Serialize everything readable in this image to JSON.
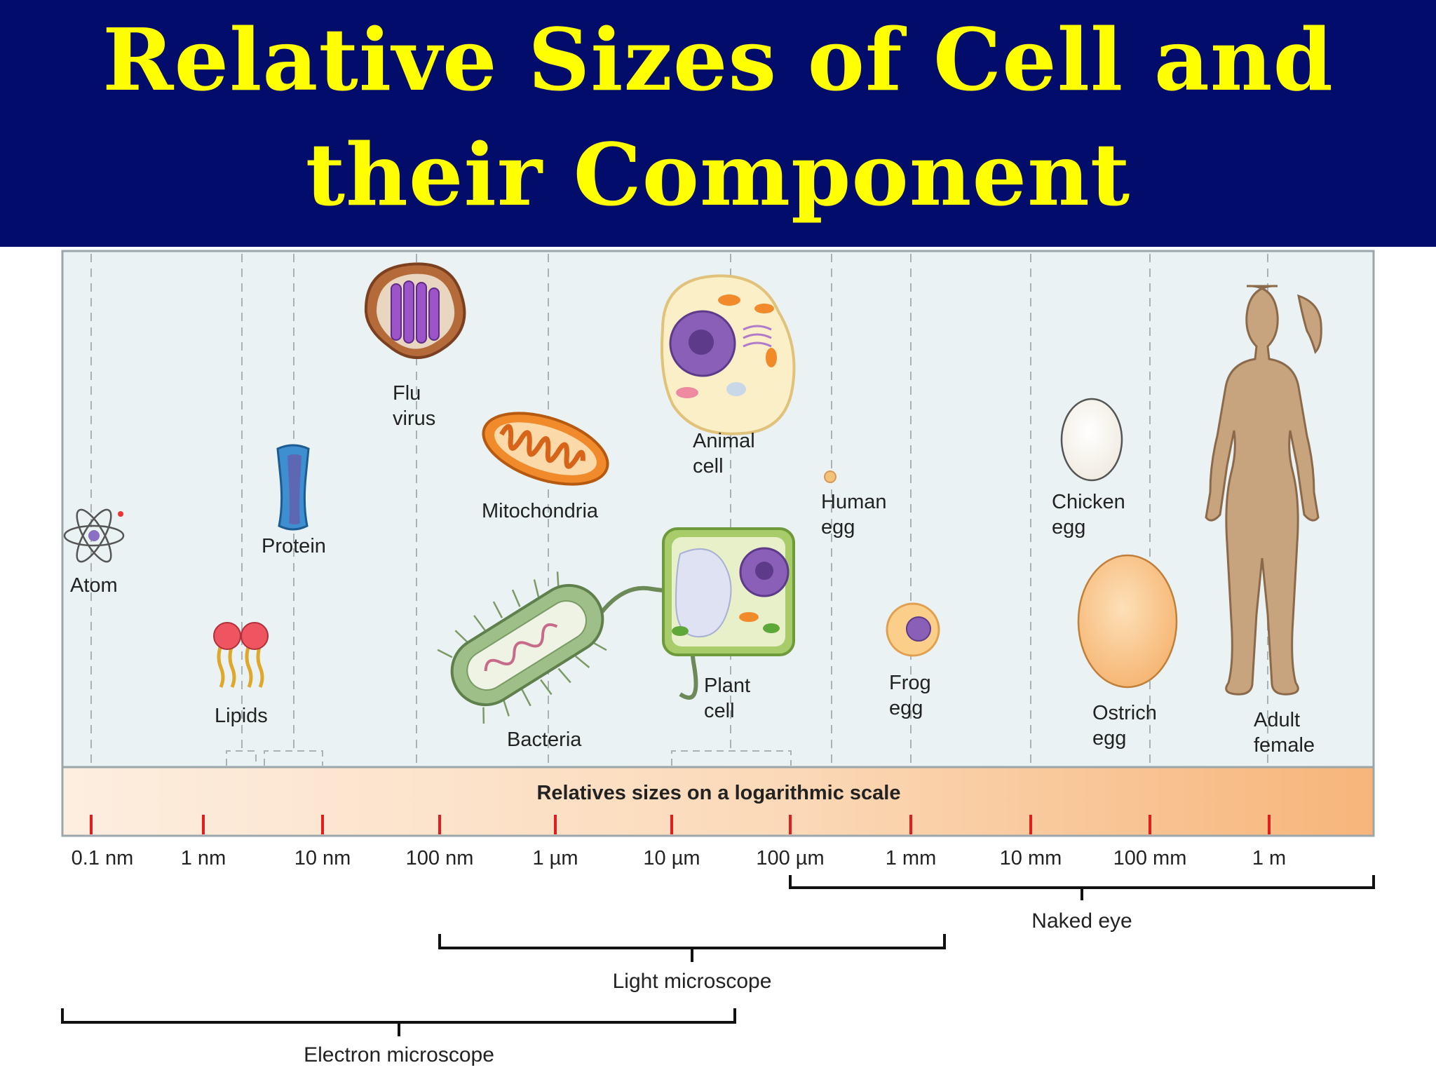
{
  "title": {
    "line1": "Relative Sizes of Cell and",
    "line2": "their Component"
  },
  "scale_label": "Relatives sizes on a logarithmic scale",
  "ticks": [
    "0.1 nm",
    "1 nm",
    "10 nm",
    "100 nm",
    "1 µm",
    "10 µm",
    "100 µm",
    "1 mm",
    "10 mm",
    "100 mm",
    "1 m"
  ],
  "objects": {
    "atom": "Atom",
    "lipids": "Lipids",
    "protein": "Protein",
    "flu_virus": [
      "Flu",
      "virus"
    ],
    "mitochondria": "Mitochondria",
    "bacteria": "Bacteria",
    "animal_cell": [
      "Animal",
      "cell"
    ],
    "plant_cell": [
      "Plant",
      "cell"
    ],
    "human_egg": [
      "Human",
      "egg"
    ],
    "frog_egg": [
      "Frog",
      "egg"
    ],
    "chicken_egg": [
      "Chicken",
      "egg"
    ],
    "ostrich_egg": [
      "Ostrich",
      "egg"
    ],
    "adult_female": [
      "Adult",
      "female"
    ]
  },
  "ranges": {
    "naked_eye": "Naked eye",
    "light_microscope": "Light microscope",
    "electron_microscope": "Electron microscope"
  },
  "colors": {
    "title_bg": "#020c6b",
    "title_text": "#ffff00",
    "panel_bg": "#eaf2f3",
    "tick": "#e11d1d",
    "band_start": "#fdeee0",
    "band_end": "#f7b57a"
  }
}
